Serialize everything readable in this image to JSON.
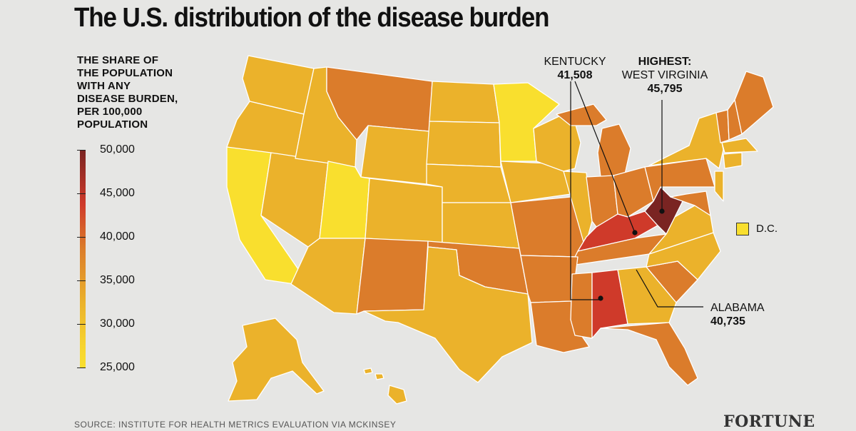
{
  "title": "The U.S. distribution of the disease burden",
  "legend": {
    "title_lines": [
      "THE SHARE OF",
      "THE POPULATION",
      "WITH ANY",
      "DISEASE BURDEN,",
      "PER 100,000",
      "POPULATION"
    ],
    "ticks": [
      "50,000",
      "45,000",
      "40,000",
      "35,000",
      "30,000",
      "25,000"
    ]
  },
  "colors": {
    "tier_25k": "#f9df2e",
    "tier_30k": "#ebb22b",
    "tier_35k": "#db7c2b",
    "tier_40k": "#cf3a2a",
    "tier_45k": "#7a2422",
    "background": "#e6e6e4"
  },
  "annotations": {
    "kentucky": {
      "name": "KENTUCKY",
      "value": "41,508"
    },
    "west_virginia": {
      "prefix": "HIGHEST:",
      "name": "WEST VIRGINIA",
      "value": "45,795"
    },
    "alabama": {
      "name": "ALABAMA",
      "value": "40,735"
    }
  },
  "dc": {
    "label": "D.C."
  },
  "source": "SOURCE: INSTITUTE FOR HEALTH METRICS EVALUATION VIA MCKINSEY",
  "logo": "FORTUNE"
}
